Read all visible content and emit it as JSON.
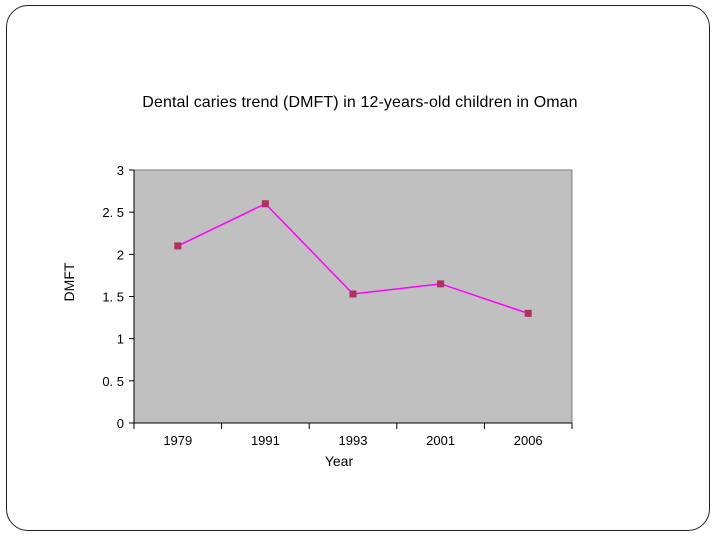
{
  "chart_data": {
    "type": "line",
    "title": "Dental caries trend (DMFT) in 12-years-old children in Oman",
    "xlabel": "Year",
    "ylabel": "DMFT",
    "categories": [
      "1979",
      "1991",
      "1993",
      "2001",
      "2006"
    ],
    "series": [
      {
        "values": [
          2.1,
          2.6,
          1.53,
          1.65,
          1.3
        ]
      }
    ],
    "ylim": [
      0,
      3
    ],
    "yticks": [
      0,
      0.5,
      1,
      1.5,
      2,
      2.5,
      3
    ],
    "ytick_labels": [
      "0",
      "0. 5",
      "1",
      "1. 5",
      "2",
      "2. 5",
      "3"
    ],
    "grid": false,
    "legend": "none",
    "colors": {
      "plot_background": "#c0c0c0",
      "line": "#ff00ff",
      "marker": "#b03060"
    }
  }
}
